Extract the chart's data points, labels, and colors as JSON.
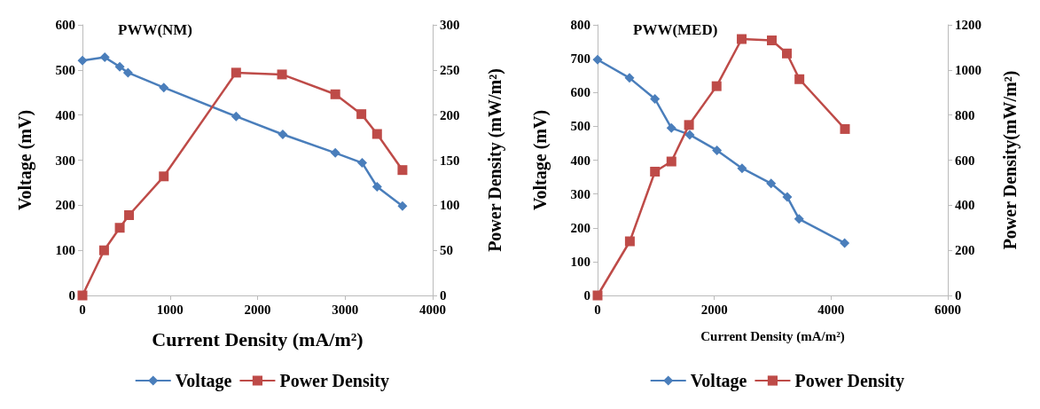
{
  "chart_data": [
    {
      "type": "line",
      "title": "PWW(NM)",
      "xlabel": "Current Density (mA/m²)",
      "ylabel": "Voltage (mV)",
      "y2label": "Power Density (mW/m²)",
      "xlim": [
        0,
        4000
      ],
      "xticks": [
        0,
        1000,
        2000,
        3000,
        4000
      ],
      "ylim": [
        0,
        600
      ],
      "yticks": [
        0,
        100,
        200,
        300,
        400,
        500,
        600
      ],
      "y2lim": [
        0,
        300
      ],
      "y2ticks": [
        0,
        50,
        100,
        150,
        200,
        250,
        300
      ],
      "grid": false,
      "legend": "bottom",
      "series": [
        {
          "name": "Voltage",
          "color": "#4a7ebb",
          "marker": "diamond",
          "x": [
            0,
            255,
            426,
            520,
            929,
            1755,
            2288,
            2888,
            3195,
            3365,
            3655
          ],
          "values": [
            521,
            528,
            507,
            494,
            461,
            397,
            357,
            316,
            294,
            241,
            198
          ]
        },
        {
          "name": "Power Density",
          "color": "#be4b48",
          "marker": "square",
          "axis": "y2",
          "x": [
            0,
            247,
            426,
            532,
            929,
            1755,
            2279,
            2888,
            3186,
            3365,
            3655
          ],
          "values": [
            0,
            50,
            75,
            89,
            132,
            247,
            245,
            223,
            201,
            179,
            139
          ]
        }
      ]
    },
    {
      "type": "line",
      "title": "PWW(MED)",
      "xlabel": "Current Density (mA/m²)",
      "ylabel": "Voltage (mV)",
      "y2label": "Power Density(mW/m²)",
      "xlim": [
        0,
        6000
      ],
      "xticks": [
        0,
        2000,
        4000,
        6000
      ],
      "ylim": [
        0,
        800
      ],
      "yticks": [
        0,
        100,
        200,
        300,
        400,
        500,
        600,
        700,
        800
      ],
      "y2lim": [
        0,
        1200
      ],
      "y2ticks": [
        0,
        200,
        400,
        600,
        800,
        1000,
        1200
      ],
      "grid": false,
      "legend": "bottom",
      "series": [
        {
          "name": "Voltage",
          "color": "#4a7ebb",
          "marker": "diamond",
          "x": [
            0,
            547,
            983,
            1265,
            1579,
            2045,
            2475,
            2973,
            3250,
            3452,
            4232
          ],
          "values": [
            697,
            643,
            581,
            495,
            475,
            429,
            376,
            331,
            291,
            226,
            155
          ]
        },
        {
          "name": "Power Density",
          "color": "#be4b48",
          "marker": "square",
          "axis": "y2",
          "x": [
            0,
            553,
            983,
            1265,
            1566,
            2039,
            2469,
            2985,
            3243,
            3458,
            4238
          ],
          "values": [
            0,
            240,
            549,
            594,
            756,
            928,
            1137,
            1131,
            1073,
            959,
            738
          ]
        }
      ]
    }
  ]
}
